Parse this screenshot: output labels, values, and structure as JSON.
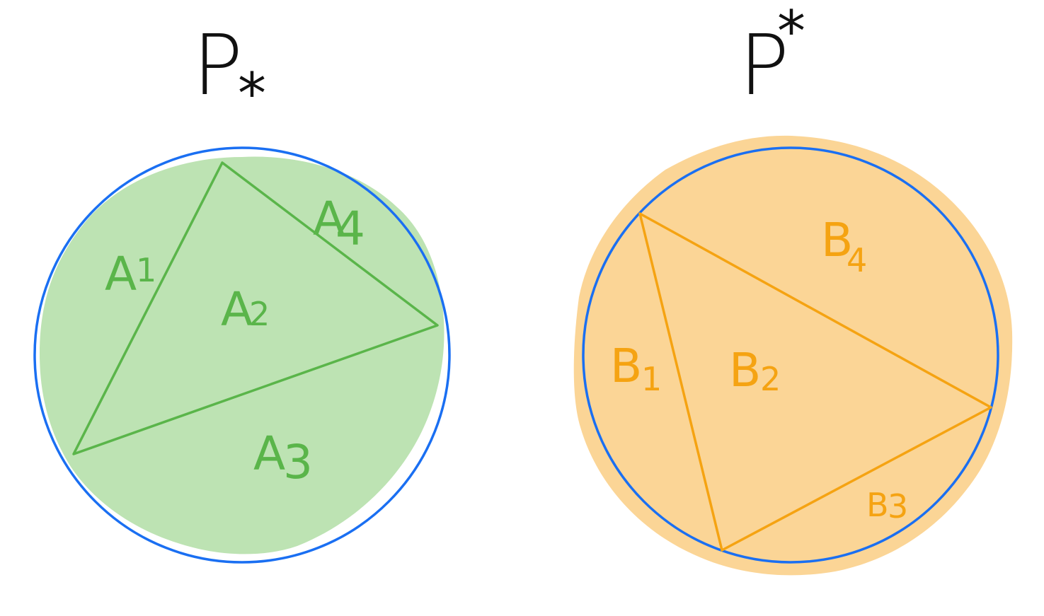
{
  "left_panel": {
    "title_letter": "P",
    "title_symbol": "*",
    "regions": [
      {
        "name": "A",
        "index": "1"
      },
      {
        "name": "A",
        "index": "2"
      },
      {
        "name": "A",
        "index": "3"
      },
      {
        "name": "A",
        "index": "4"
      }
    ],
    "fill_color": "#bde3b3",
    "line_color": "#5ab54a"
  },
  "right_panel": {
    "title_letter": "P",
    "title_symbol": "*",
    "regions": [
      {
        "name": "B",
        "index": "1"
      },
      {
        "name": "B",
        "index": "2"
      },
      {
        "name": "B",
        "index": "3"
      },
      {
        "name": "B",
        "index": "4"
      }
    ],
    "fill_color": "#fbd596",
    "line_color": "#f5a312"
  },
  "circle_color": "#1a6ff2"
}
